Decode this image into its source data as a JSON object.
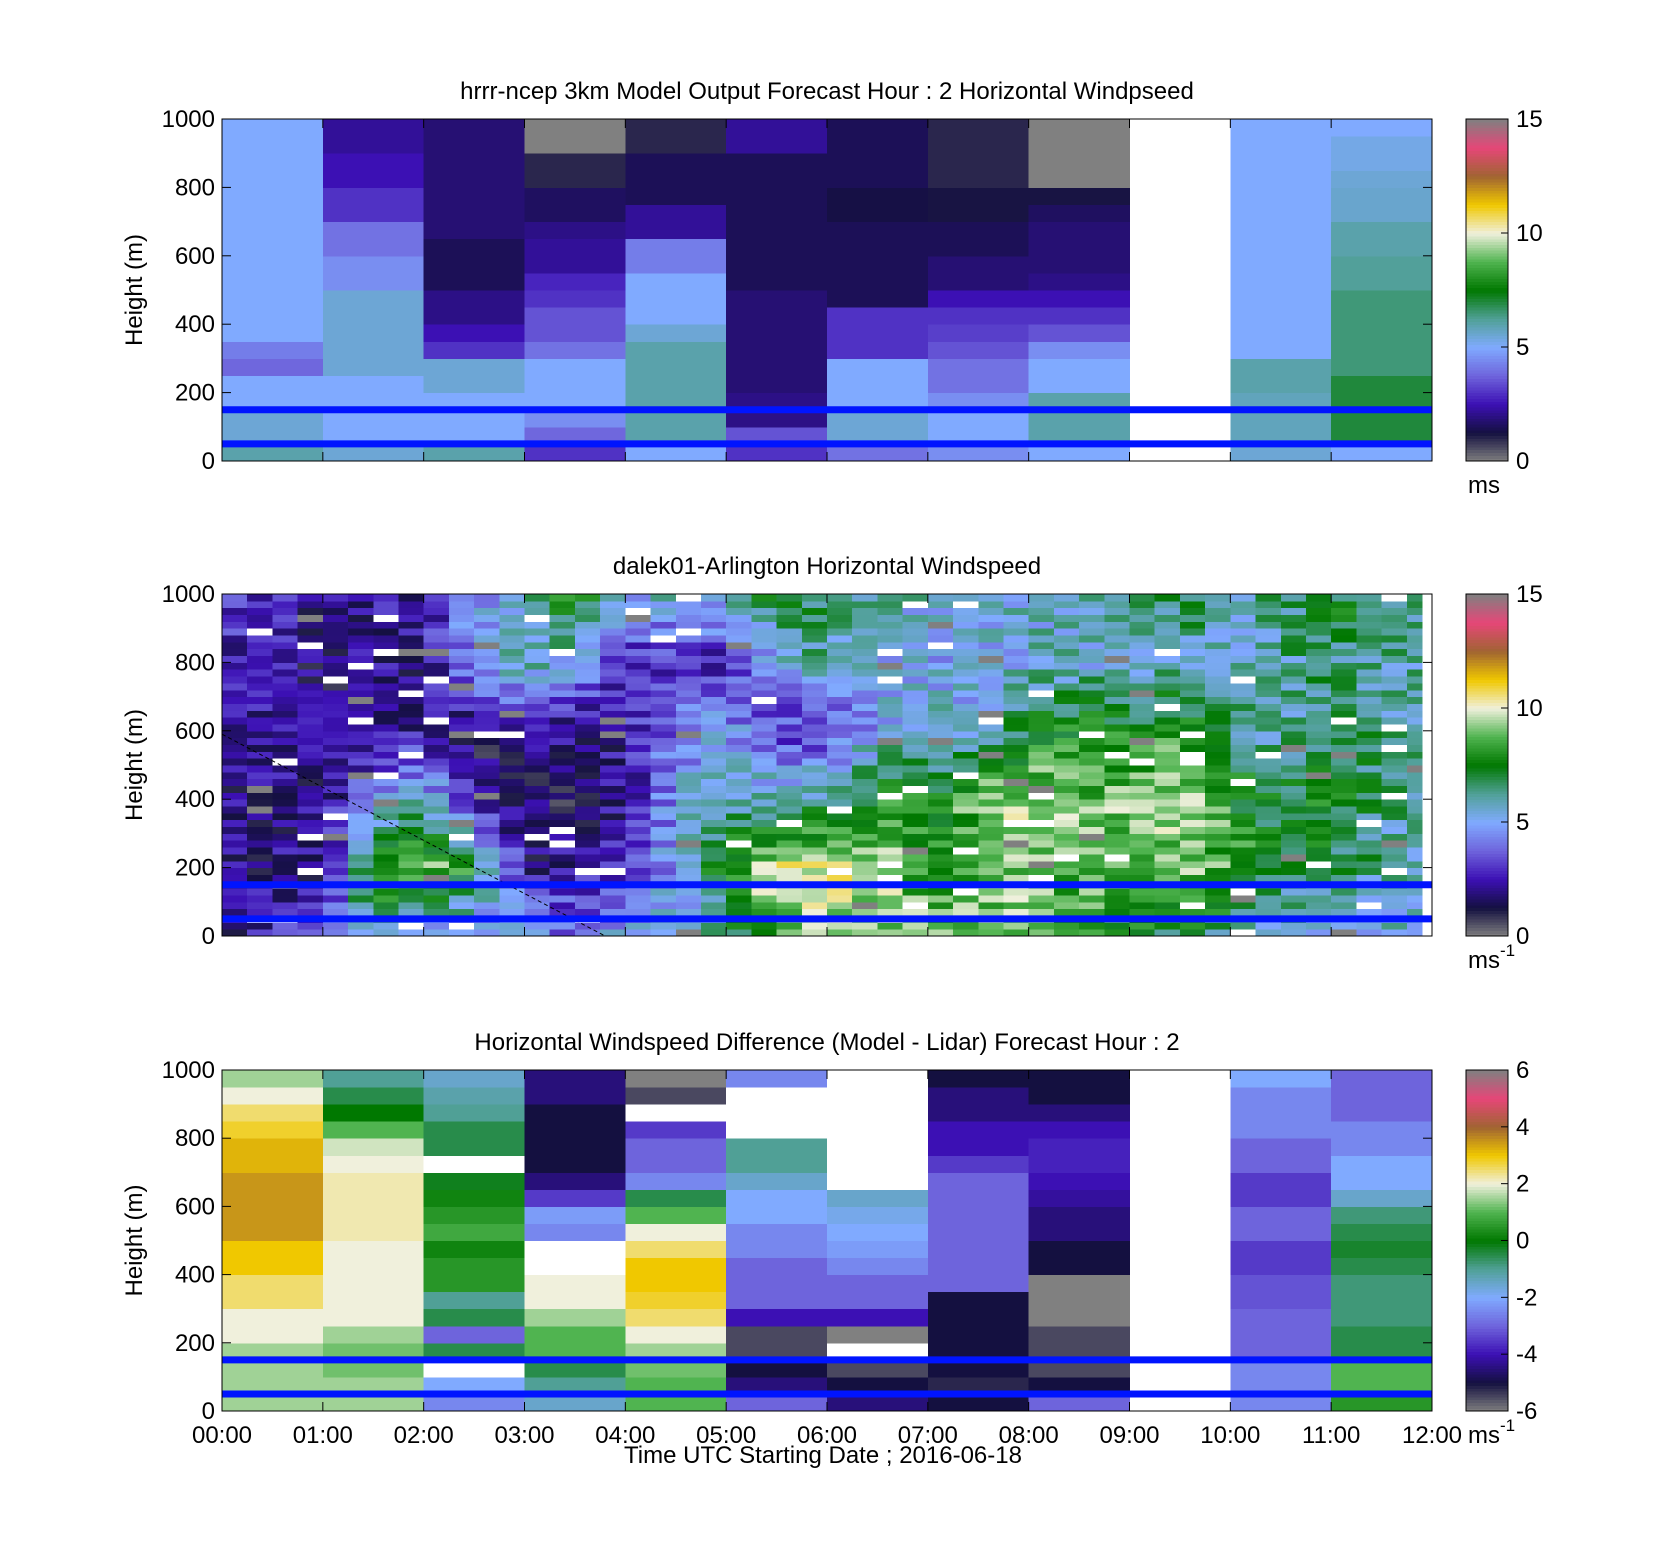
{
  "x_ticks": [
    "00:00",
    "01:00",
    "02:00",
    "03:00",
    "04:00",
    "05:00",
    "06:00",
    "07:00",
    "08:00",
    "09:00",
    "10:00",
    "11:00",
    "12:00"
  ],
  "xlabel": "Time UTC  Starting Date ; 2016-06-18",
  "colormap": {
    "stops": [
      "#808080",
      "#141040",
      "#3c10b4",
      "#6e64dc",
      "#80aaff",
      "#50a096",
      "#007800",
      "#50b450",
      "#f0f0dc",
      "#f0c800",
      "#a06432",
      "#e64678",
      "#808080"
    ],
    "under_over": "#808080"
  },
  "chart_data": [
    {
      "type": "heatmap",
      "title": "hrrr-ncep 3km Model Output   Forecast Hour : 2 Horizontal Windpseed",
      "ylabel": "Height (m)",
      "ylim": [
        0,
        1000
      ],
      "y_ticks": [
        "0",
        "200",
        "400",
        "600",
        "800",
        "1000"
      ],
      "xlim_hours": [
        0,
        12
      ],
      "colorbar": {
        "ticks": [
          "0",
          "5",
          "10",
          "15"
        ],
        "vmin": 0,
        "vmax": 15,
        "unit": "ms",
        "unit_sup": ""
      },
      "hlines_m": [
        50,
        150
      ],
      "columns": [
        {
          "t0": 0,
          "t1": 1,
          "v": [
            6,
            5.5,
            5.5,
            5,
            5,
            3.8,
            4.2,
            5,
            5,
            5,
            5,
            5,
            5,
            5,
            5,
            5,
            5,
            5,
            5,
            5
          ]
        },
        {
          "t0": 1,
          "t1": 2,
          "v": [
            5.5,
            5,
            5,
            5,
            5,
            5.5,
            5.5,
            5.5,
            5.5,
            5.5,
            4.5,
            4.5,
            4,
            4,
            3,
            3,
            2.5,
            2.5,
            2.2,
            2.2
          ]
        },
        {
          "t0": 2,
          "t1": 3,
          "v": [
            6,
            5,
            5,
            5,
            5.5,
            5.5,
            3,
            2.5,
            2,
            2,
            1.5,
            1.5,
            1.5,
            1.8,
            1.8,
            1.8,
            1.8,
            1.8,
            1.8,
            1.8
          ]
        },
        {
          "t0": 3,
          "t1": 4,
          "v": [
            3,
            3.8,
            4.5,
            5,
            5,
            5,
            4,
            3.5,
            3.5,
            3,
            2.8,
            2.2,
            2.2,
            2,
            1.6,
            1.6,
            1,
            1,
            15,
            15
          ]
        },
        {
          "t0": 4,
          "t1": 5,
          "v": [
            5,
            6,
            6,
            6,
            6,
            6,
            6,
            5.5,
            5,
            5,
            5,
            4.2,
            4.2,
            2.2,
            2.2,
            1.5,
            1.5,
            1.5,
            1,
            1
          ]
        },
        {
          "t0": 5,
          "t1": 6,
          "v": [
            3,
            3.5,
            2,
            2,
            1.8,
            1.8,
            1.8,
            1.8,
            1.8,
            1.8,
            1.5,
            1.5,
            1.5,
            1.5,
            1.5,
            1.5,
            1.5,
            1.5,
            2.2,
            2.2
          ]
        },
        {
          "t0": 6,
          "t1": 7,
          "v": [
            4,
            5.5,
            5.5,
            5,
            5,
            5,
            3,
            3,
            3,
            1.5,
            1.5,
            1.5,
            1.5,
            1.5,
            1.3,
            1.3,
            1.5,
            1.5,
            1.5,
            1.5
          ]
        },
        {
          "t0": 7,
          "t1": 8,
          "v": [
            4.5,
            5,
            5,
            4.5,
            4,
            4,
            3.5,
            3.2,
            3,
            2.5,
            1.8,
            1.8,
            1.5,
            1.5,
            1.2,
            1.2,
            1,
            1,
            1,
            1
          ]
        },
        {
          "t0": 8,
          "t1": 9,
          "v": [
            5,
            6,
            6,
            6,
            5,
            5,
            4.5,
            3.5,
            3,
            2.5,
            2,
            1.8,
            1.8,
            1.8,
            1.6,
            1.2,
            15,
            15,
            15,
            15
          ]
        },
        {
          "t0": 9,
          "t1": 10,
          "v": null
        },
        {
          "t0": 10,
          "t1": 11,
          "v": [
            5.5,
            5.8,
            5.8,
            5.8,
            6,
            6,
            5,
            5,
            5,
            5,
            5,
            5,
            5,
            5,
            5,
            5,
            5,
            5,
            5,
            5
          ]
        },
        {
          "t0": 11,
          "t1": 12,
          "v": [
            5,
            7,
            7,
            7,
            7,
            6.5,
            6.5,
            6.5,
            6.5,
            6.5,
            6.2,
            6.2,
            6,
            6,
            5.6,
            5.6,
            5.5,
            5.3,
            5.3,
            5
          ]
        }
      ]
    },
    {
      "type": "heatmap",
      "title": "dalek01-Arlington  Horizontal Windspeed",
      "ylabel": "Height (m)",
      "ylim": [
        0,
        1000
      ],
      "y_ticks": [
        "0",
        "200",
        "400",
        "600",
        "800",
        "1000"
      ],
      "xlim_hours": [
        0,
        12
      ],
      "colorbar": {
        "ticks": [
          "0",
          "5",
          "10",
          "15"
        ],
        "vmin": 0,
        "vmax": 15,
        "unit": "ms",
        "unit_sup": "-1"
      },
      "hlines_m": [
        50,
        150
      ],
      "profiles_note": "lidar profiles every 15 min, 0-1000 m in 20 m bins",
      "profile_anchors": [
        [
          0.0,
          [
            2.0,
            2.0,
            2.0,
            2.0,
            2.5,
            3.0
          ]
        ],
        [
          0.5,
          [
            3.0,
            2.0,
            2.0,
            2.0,
            2.5,
            3.0
          ]
        ],
        [
          1.0,
          [
            3.0,
            2.0,
            2.0,
            2.0,
            1.5,
            1.8
          ]
        ],
        [
          1.5,
          [
            6.0,
            9.0,
            4.0,
            2.0,
            2.0,
            2.5
          ]
        ],
        [
          2.0,
          [
            5.0,
            9.0,
            6.0,
            2.5,
            2.0,
            2.5
          ]
        ],
        [
          2.5,
          [
            4.0,
            8.0,
            2.0,
            1.5,
            5.0,
            4.5
          ]
        ],
        [
          3.0,
          [
            5.0,
            2.0,
            1.5,
            2.0,
            6.0,
            6.0
          ]
        ],
        [
          3.5,
          [
            4.0,
            2.5,
            1.5,
            2.0,
            5.0,
            8.0
          ]
        ],
        [
          4.0,
          [
            5.0,
            3.0,
            2.0,
            2.5,
            2.5,
            5.0
          ]
        ],
        [
          4.5,
          [
            5.0,
            5.0,
            5.0,
            4.0,
            3.0,
            6.0
          ]
        ],
        [
          5.0,
          [
            6.0,
            8.0,
            6.0,
            5.0,
            2.5,
            5.5
          ]
        ],
        [
          5.5,
          [
            9.0,
            10.0,
            6.0,
            3.0,
            5.0,
            7.5
          ]
        ],
        [
          6.0,
          [
            9.0,
            10.0,
            6.5,
            3.0,
            6.0,
            7.0
          ]
        ],
        [
          6.5,
          [
            9.5,
            9.5,
            8.0,
            5.0,
            5.0,
            6.0
          ]
        ],
        [
          7.0,
          [
            9.0,
            8.0,
            7.5,
            5.5,
            5.0,
            5.5
          ]
        ],
        [
          7.5,
          [
            9.0,
            8.5,
            9.0,
            5.5,
            5.0,
            5.5
          ]
        ],
        [
          8.0,
          [
            9.0,
            9.5,
            9.5,
            7.5,
            5.5,
            5.5
          ]
        ],
        [
          8.5,
          [
            8.5,
            8.5,
            9.0,
            8.0,
            5.5,
            6.0
          ]
        ],
        [
          9.0,
          [
            7.5,
            9.0,
            9.0,
            7.5,
            5.5,
            6.5
          ]
        ],
        [
          9.5,
          [
            7.0,
            9.0,
            9.5,
            8.0,
            6.0,
            7.0
          ]
        ],
        [
          10.0,
          [
            6.5,
            8.5,
            8.0,
            6.5,
            5.5,
            6.0
          ]
        ],
        [
          10.5,
          [
            5.0,
            7.0,
            7.0,
            6.0,
            6.0,
            6.5
          ]
        ],
        [
          11.0,
          [
            5.5,
            7.0,
            7.5,
            7.0,
            6.5,
            7.5
          ]
        ],
        [
          11.5,
          [
            5.5,
            6.0,
            6.5,
            6.5,
            6.0,
            6.5
          ]
        ],
        [
          11.75,
          [
            5.0,
            6.0,
            6.0,
            6.0,
            6.0,
            6.5
          ]
        ]
      ],
      "profile_anchor_heights_m": [
        0,
        200,
        400,
        600,
        800,
        1000
      ],
      "data_end_hour": 11.9,
      "dashed_line": {
        "from": [
          0,
          590
        ],
        "to": [
          3.8,
          0
        ]
      }
    },
    {
      "type": "heatmap",
      "title": "Horizontal Windspeed Difference (Model - Lidar) Forecast Hour : 2",
      "ylabel": "Height (m)",
      "ylim": [
        0,
        1000
      ],
      "y_ticks": [
        "0",
        "200",
        "400",
        "600",
        "800",
        "1000"
      ],
      "xlim_hours": [
        0,
        12
      ],
      "colorbar": {
        "ticks": [
          "-6",
          "-4",
          "-2",
          "0",
          "2",
          "4",
          "6"
        ],
        "vmin": -6,
        "vmax": 6,
        "unit": "ms",
        "unit_sup": "-1"
      },
      "hlines_m": [
        50,
        150
      ],
      "columns": [
        {
          "t0": 0,
          "t1": 1,
          "v": [
            1.5,
            1.5,
            1.5,
            1.5,
            2,
            2,
            2.5,
            2.5,
            3,
            3,
            3.5,
            3.5,
            3.5,
            3.5,
            3.2,
            3.2,
            2.8,
            2.5,
            2,
            1.5
          ]
        },
        {
          "t0": 1,
          "t1": 2,
          "v": [
            1.5,
            1.5,
            1.2,
            1.2,
            1.5,
            2,
            2,
            2,
            2,
            2,
            2.2,
            2.2,
            2.2,
            2.2,
            2,
            1.8,
            1,
            0,
            -0.5,
            -1
          ]
        },
        {
          "t0": 2,
          "t1": 3,
          "v": [
            -2.5,
            -2,
            99,
            -0.5,
            -3,
            -0.5,
            -1,
            0.5,
            0.5,
            0.2,
            0.8,
            0.5,
            0.2,
            -0.2,
            99,
            -0.5,
            -0.5,
            -1,
            -1.2,
            -1.5
          ]
        },
        {
          "t0": 3,
          "t1": 4,
          "v": [
            -1.5,
            -1,
            -0.5,
            1,
            1,
            1.5,
            2,
            2,
            99,
            99,
            -2.5,
            -2.2,
            -3.5,
            -4.5,
            -5,
            -5,
            -5,
            -5,
            -4.5,
            -4.5
          ]
        },
        {
          "t0": 4,
          "t1": 5,
          "v": [
            1,
            1,
            1.2,
            1.5,
            2,
            2.5,
            2.8,
            3,
            3,
            2.5,
            2,
            1,
            -0.5,
            -2.5,
            -3,
            -3,
            -3.5,
            99,
            -5.5,
            -6
          ]
        },
        {
          "t0": 5,
          "t1": 6,
          "v": [
            -3,
            -4.5,
            -5,
            -5.5,
            -5.5,
            -4,
            -3,
            -3,
            -3,
            -2.5,
            -2.5,
            -2,
            -2,
            -1.5,
            -1,
            -1,
            99,
            99,
            99,
            -2.5
          ]
        },
        {
          "t0": 6,
          "t1": 7,
          "v": [
            -4.5,
            -5,
            -5.5,
            99,
            -6,
            -4,
            -3,
            -3,
            -2.5,
            -2.2,
            -2,
            -1.8,
            -1.5,
            99,
            99,
            99,
            99,
            99,
            99,
            99
          ]
        },
        {
          "t0": 7,
          "t1": 8,
          "v": [
            -5,
            -5.2,
            -5,
            -5,
            -5,
            -5,
            -5,
            -3,
            -3,
            -3,
            -3,
            -3,
            -3,
            -3,
            -3.5,
            -4,
            -4,
            -4.5,
            -4.5,
            -5
          ]
        },
        {
          "t0": 8,
          "t1": 9,
          "v": [
            -3,
            -5,
            -5.5,
            -5.5,
            -5.5,
            -6.5,
            -6,
            -6,
            -5,
            -5,
            -4.5,
            -4.5,
            -4.2,
            -4,
            -3.8,
            -3.8,
            -4,
            -4.5,
            -5,
            -5
          ]
        },
        {
          "t0": 9,
          "t1": 10,
          "v": null
        },
        {
          "t0": 10,
          "t1": 11,
          "v": [
            -2.5,
            -2.5,
            -2.5,
            -3,
            -3,
            -3,
            -3.2,
            -3.2,
            -3.5,
            -3.5,
            -3,
            -3,
            -3.5,
            -3.5,
            -3,
            -3,
            -2.5,
            -2.5,
            -2.5,
            -2
          ]
        },
        {
          "t0": 11,
          "t1": 12,
          "v": [
            0.5,
            1,
            1,
            -0.5,
            -0.5,
            -0.8,
            -0.8,
            -0.8,
            -0.5,
            -0.3,
            -0.5,
            -0.8,
            -1.5,
            -2,
            -2,
            -2.5,
            -2.5,
            -3,
            -3,
            -3
          ]
        }
      ]
    }
  ]
}
